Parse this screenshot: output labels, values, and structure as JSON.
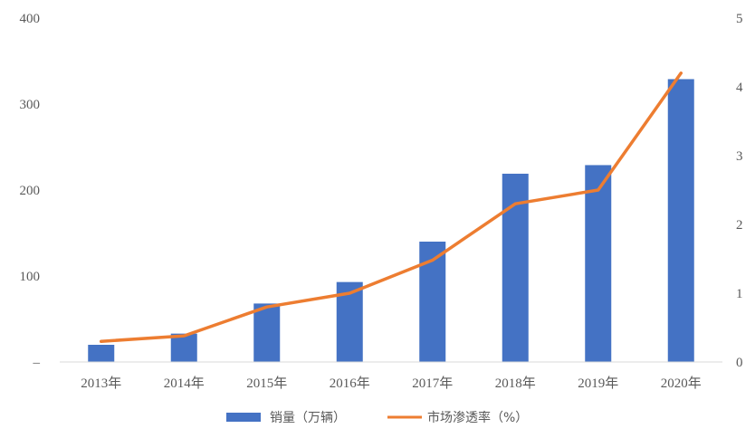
{
  "chart_data": {
    "type": "bar+line",
    "categories": [
      "2013年",
      "2014年",
      "2015年",
      "2016年",
      "2017年",
      "2018年",
      "2019年",
      "2020年"
    ],
    "series": [
      {
        "name": "销量（万辆）",
        "type": "bar",
        "axis": "left",
        "color": "#4472C4",
        "values": [
          20,
          33,
          68,
          93,
          140,
          219,
          229,
          329
        ]
      },
      {
        "name": "市场渗透率（%）",
        "type": "line",
        "axis": "right",
        "color": "#ED7D31",
        "values": [
          0.3,
          0.38,
          0.8,
          1.0,
          1.48,
          2.3,
          2.5,
          4.2
        ]
      }
    ],
    "y_left": {
      "min": 0,
      "max": 400,
      "ticks": [
        "–",
        "100",
        "200",
        "300",
        "400"
      ]
    },
    "y_right": {
      "min": 0,
      "max": 5,
      "ticks": [
        "0",
        "1",
        "2",
        "3",
        "4",
        "5"
      ]
    },
    "legend_position": "bottom",
    "grid": false
  }
}
